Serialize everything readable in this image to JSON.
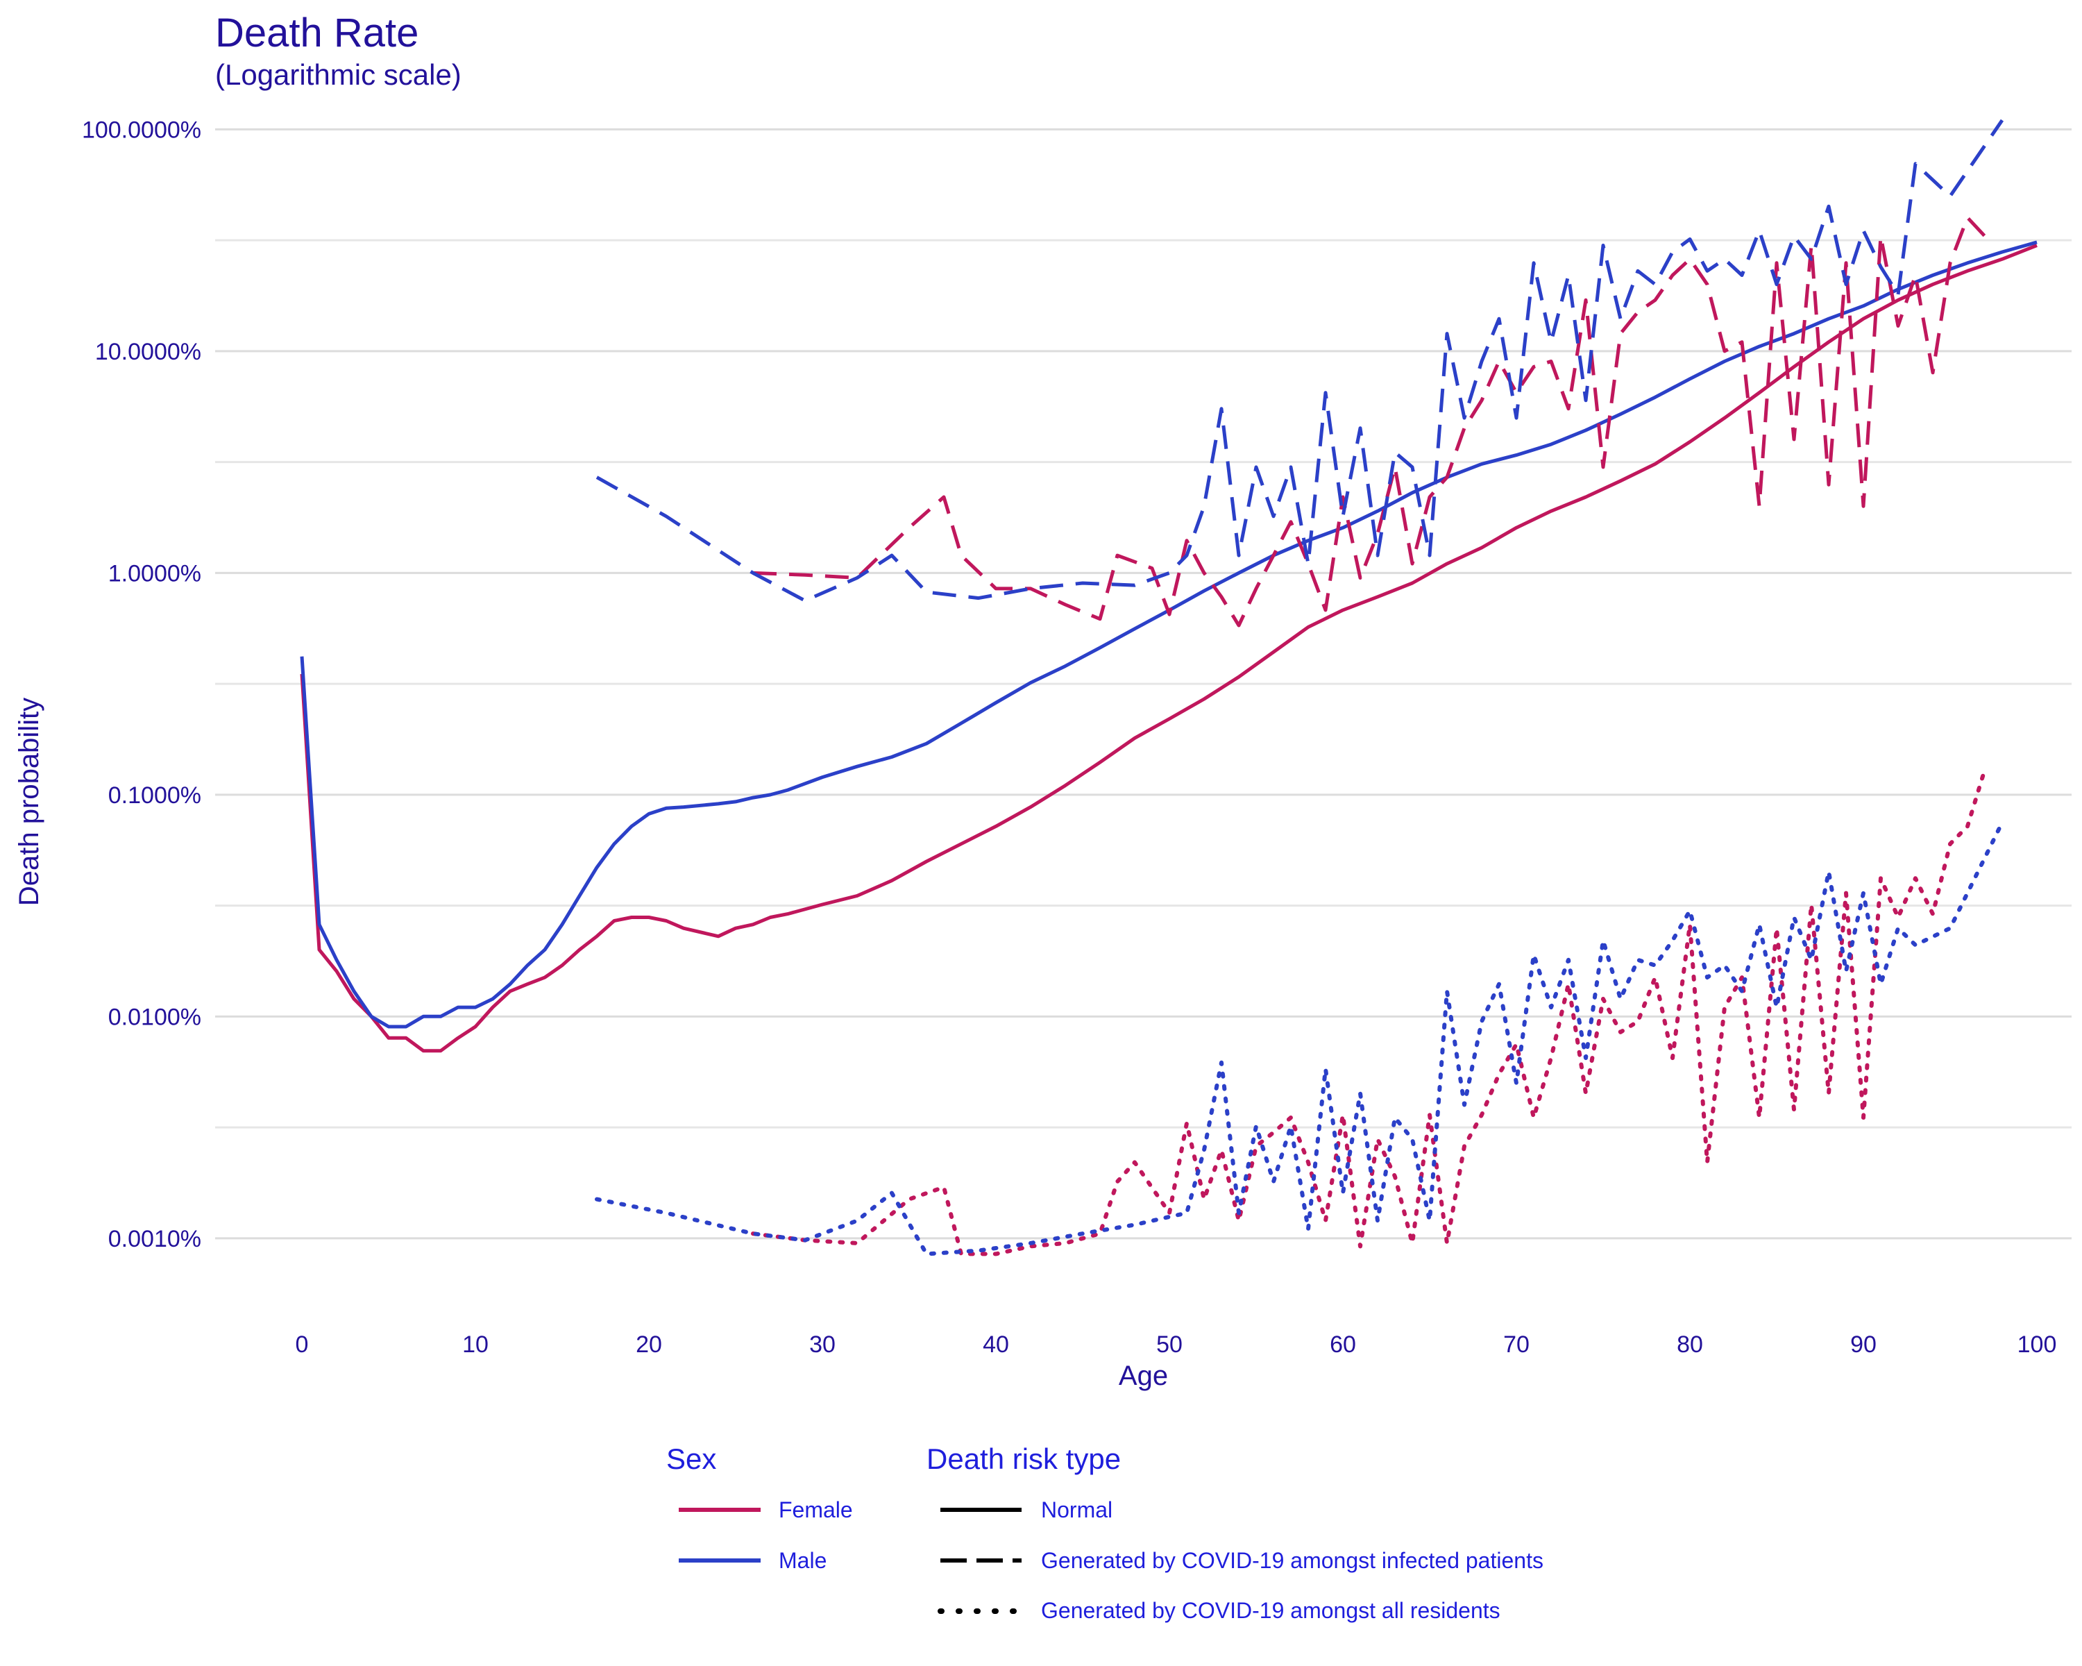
{
  "chart_data": {
    "type": "line",
    "title": "Death Rate",
    "subtitle": "(Logarithmic scale)",
    "xlabel": "Age",
    "ylabel": "Death probability",
    "y_scale": "log",
    "xlim": [
      -5,
      102
    ],
    "ylim": [
      5e-06,
      1.3
    ],
    "x_ticks": [
      0,
      10,
      20,
      30,
      40,
      50,
      60,
      70,
      80,
      90,
      100
    ],
    "y_ticks": [
      1e-05,
      0.0001,
      0.001,
      0.01,
      0.1,
      1
    ],
    "y_tick_labels": [
      "0.0010%",
      "0.0100%",
      "0.1000%",
      "1.0000%",
      "10.0000%",
      "100.0000%"
    ],
    "grid": true,
    "legend_position": "bottom",
    "legend": {
      "sex_title": "Sex",
      "sex_items": [
        {
          "label": "Female",
          "color": "#c0175c"
        },
        {
          "label": "Male",
          "color": "#2b40c8"
        }
      ],
      "type_title": "Death risk type",
      "type_items": [
        {
          "label": "Normal",
          "dash": "solid"
        },
        {
          "label": "Generated by COVID-19 amongst infected patients",
          "dash": "dashed"
        },
        {
          "label": "Generated by COVID-19 amongst all residents",
          "dash": "dotted"
        }
      ]
    },
    "series": [
      {
        "sex": "Female",
        "type": "Normal",
        "color": "#c0175c",
        "dash": "solid",
        "x": [
          0,
          1,
          2,
          3,
          4,
          5,
          6,
          7,
          8,
          9,
          10,
          11,
          12,
          13,
          14,
          15,
          16,
          17,
          18,
          19,
          20,
          21,
          22,
          24,
          25,
          26,
          27,
          28,
          30,
          32,
          34,
          36,
          38,
          40,
          42,
          44,
          46,
          48,
          50,
          52,
          54,
          56,
          58,
          60,
          62,
          64,
          66,
          68,
          70,
          72,
          74,
          76,
          78,
          80,
          82,
          84,
          86,
          88,
          90,
          92,
          94,
          96,
          98,
          100
        ],
        "y": [
          0.0035,
          0.0002,
          0.00016,
          0.00012,
          0.0001,
          8e-05,
          8e-05,
          7e-05,
          7e-05,
          8e-05,
          9e-05,
          0.00011,
          0.00013,
          0.00014,
          0.00015,
          0.00017,
          0.0002,
          0.00023,
          0.00027,
          0.00028,
          0.00028,
          0.00027,
          0.00025,
          0.00023,
          0.00025,
          0.00026,
          0.00028,
          0.00029,
          0.00032,
          0.00035,
          0.00041,
          0.0005,
          0.0006,
          0.00072,
          0.00088,
          0.0011,
          0.0014,
          0.0018,
          0.0022,
          0.0027,
          0.0034,
          0.0044,
          0.0057,
          0.0068,
          0.0078,
          0.009,
          0.011,
          0.013,
          0.016,
          0.019,
          0.022,
          0.026,
          0.031,
          0.039,
          0.05,
          0.065,
          0.085,
          0.11,
          0.14,
          0.17,
          0.2,
          0.23,
          0.26,
          0.3
        ]
      },
      {
        "sex": "Male",
        "type": "Normal",
        "color": "#2b40c8",
        "dash": "solid",
        "x": [
          0,
          1,
          2,
          3,
          4,
          5,
          6,
          7,
          8,
          9,
          10,
          11,
          12,
          13,
          14,
          15,
          16,
          17,
          18,
          19,
          20,
          21,
          22,
          24,
          25,
          26,
          27,
          28,
          30,
          32,
          34,
          36,
          38,
          40,
          42,
          44,
          46,
          48,
          50,
          52,
          54,
          56,
          58,
          60,
          62,
          64,
          66,
          68,
          70,
          72,
          74,
          76,
          78,
          80,
          82,
          84,
          86,
          88,
          90,
          92,
          94,
          96,
          98,
          100
        ],
        "y": [
          0.0042,
          0.00026,
          0.00018,
          0.00013,
          0.0001,
          9e-05,
          9e-05,
          0.0001,
          0.0001,
          0.00011,
          0.00011,
          0.00012,
          0.00014,
          0.00017,
          0.0002,
          0.00026,
          0.00035,
          0.00047,
          0.0006,
          0.00072,
          0.00082,
          0.00087,
          0.00088,
          0.00091,
          0.00093,
          0.00097,
          0.001,
          0.00105,
          0.0012,
          0.00134,
          0.00148,
          0.0017,
          0.0021,
          0.0026,
          0.0032,
          0.0038,
          0.0046,
          0.0056,
          0.0068,
          0.0083,
          0.01,
          0.012,
          0.014,
          0.016,
          0.019,
          0.023,
          0.027,
          0.031,
          0.034,
          0.038,
          0.044,
          0.052,
          0.062,
          0.075,
          0.09,
          0.105,
          0.12,
          0.14,
          0.16,
          0.19,
          0.22,
          0.25,
          0.28,
          0.31
        ]
      },
      {
        "sex": "Female",
        "type": "Generated by COVID-19 amongst infected patients",
        "color": "#c0175c",
        "dash": "dashed",
        "x": [
          26,
          29,
          32,
          35,
          37,
          38,
          40,
          42,
          44,
          46,
          47,
          49,
          50,
          51,
          52,
          53,
          54,
          55,
          56,
          57,
          58,
          59,
          60,
          61,
          62,
          63,
          64,
          65,
          66,
          67,
          68,
          69,
          70,
          71,
          72,
          73,
          74,
          75,
          76,
          77,
          78,
          79,
          80,
          81,
          82,
          83,
          84,
          85,
          86,
          87,
          88,
          89,
          90,
          91,
          92,
          93,
          94,
          95,
          96,
          97
        ],
        "y": [
          0.01,
          0.0098,
          0.0095,
          0.016,
          0.022,
          0.012,
          0.0085,
          0.0085,
          0.0072,
          0.0062,
          0.012,
          0.0105,
          0.0065,
          0.014,
          0.01,
          0.0078,
          0.0058,
          0.0085,
          0.012,
          0.017,
          0.011,
          0.0068,
          0.022,
          0.0095,
          0.015,
          0.03,
          0.011,
          0.022,
          0.027,
          0.045,
          0.06,
          0.09,
          0.065,
          0.085,
          0.09,
          0.055,
          0.17,
          0.03,
          0.12,
          0.15,
          0.17,
          0.22,
          0.26,
          0.2,
          0.1,
          0.11,
          0.02,
          0.25,
          0.04,
          0.3,
          0.025,
          0.25,
          0.02,
          0.33,
          0.13,
          0.22,
          0.08,
          0.25,
          0.4,
          0.33
        ]
      },
      {
        "sex": "Male",
        "type": "Generated by COVID-19 amongst infected patients",
        "color": "#2b40c8",
        "dash": "dashed",
        "x": [
          17,
          21,
          26,
          29,
          32,
          34,
          36,
          39,
          42,
          45,
          48,
          50,
          51,
          52,
          53,
          54,
          55,
          56,
          57,
          58,
          59,
          60,
          61,
          62,
          63,
          64,
          65,
          66,
          67,
          68,
          69,
          70,
          71,
          72,
          73,
          74,
          75,
          76,
          77,
          78,
          79,
          80,
          81,
          82,
          83,
          84,
          85,
          86,
          87,
          88,
          89,
          90,
          91,
          92,
          93,
          95,
          98
        ],
        "y": [
          0.027,
          0.018,
          0.01,
          0.0075,
          0.0095,
          0.012,
          0.0082,
          0.0077,
          0.0085,
          0.009,
          0.0088,
          0.01,
          0.012,
          0.02,
          0.055,
          0.012,
          0.03,
          0.018,
          0.03,
          0.011,
          0.065,
          0.018,
          0.045,
          0.012,
          0.035,
          0.03,
          0.012,
          0.12,
          0.05,
          0.09,
          0.14,
          0.05,
          0.25,
          0.11,
          0.22,
          0.06,
          0.3,
          0.14,
          0.23,
          0.2,
          0.28,
          0.32,
          0.23,
          0.26,
          0.22,
          0.35,
          0.2,
          0.33,
          0.26,
          0.45,
          0.2,
          0.35,
          0.24,
          0.18,
          0.7,
          0.5,
          1.1
        ]
      },
      {
        "sex": "Female",
        "type": "Generated by COVID-19 amongst all residents",
        "color": "#c0175c",
        "dash": "dotted",
        "x": [
          26,
          29,
          32,
          35,
          37,
          38,
          40,
          42,
          44,
          46,
          47,
          48,
          50,
          51,
          52,
          53,
          54,
          55,
          56,
          57,
          58,
          59,
          60,
          61,
          62,
          63,
          64,
          65,
          66,
          67,
          68,
          69,
          70,
          71,
          72,
          73,
          74,
          75,
          76,
          77,
          78,
          79,
          80,
          81,
          82,
          83,
          84,
          85,
          86,
          87,
          88,
          89,
          90,
          91,
          92,
          93,
          94,
          95,
          96,
          97
        ],
        "y": [
          1.05e-05,
          9.8e-06,
          9.5e-06,
          1.5e-05,
          1.7e-05,
          8.5e-06,
          8.5e-06,
          9.2e-06,
          9.5e-06,
          1.05e-05,
          1.8e-05,
          2.2e-05,
          1.3e-05,
          3.3e-05,
          1.5e-05,
          2.5e-05,
          1.2e-05,
          2.6e-05,
          3e-05,
          3.5e-05,
          2.2e-05,
          1.2e-05,
          3.6e-05,
          9.2e-06,
          2.8e-05,
          1.9e-05,
          9.5e-06,
          3.6e-05,
          9.5e-06,
          2.6e-05,
          3.6e-05,
          5.5e-05,
          7.5e-05,
          3.5e-05,
          6.5e-05,
          0.00014,
          4.5e-05,
          0.00012,
          8.5e-05,
          9.5e-05,
          0.00015,
          6.5e-05,
          0.00026,
          2.2e-05,
          0.00011,
          0.00015,
          3.5e-05,
          0.00025,
          3.8e-05,
          0.00032,
          4.5e-05,
          0.00036,
          3.5e-05,
          0.00042,
          0.00028,
          0.00042,
          0.00029,
          0.0006,
          0.00072,
          0.0013
        ]
      },
      {
        "sex": "Male",
        "type": "Generated by COVID-19 amongst all residents",
        "color": "#2b40c8",
        "dash": "dotted",
        "x": [
          17,
          21,
          26,
          29,
          32,
          34,
          36,
          39,
          42,
          45,
          48,
          50,
          51,
          52,
          53,
          54,
          55,
          56,
          57,
          58,
          59,
          60,
          61,
          62,
          63,
          64,
          65,
          66,
          67,
          68,
          69,
          70,
          71,
          72,
          73,
          74,
          75,
          76,
          77,
          78,
          79,
          80,
          81,
          82,
          83,
          84,
          85,
          86,
          87,
          88,
          89,
          90,
          91,
          92,
          93,
          95,
          98
        ],
        "y": [
          1.5e-05,
          1.3e-05,
          1.05e-05,
          9.8e-06,
          1.2e-05,
          1.6e-05,
          8.5e-06,
          8.8e-06,
          9.5e-06,
          1.05e-05,
          1.15e-05,
          1.25e-05,
          1.3e-05,
          2.5e-05,
          6.2e-05,
          1.3e-05,
          3.2e-05,
          1.8e-05,
          3.2e-05,
          1.1e-05,
          5.8e-05,
          1.6e-05,
          4.5e-05,
          1.2e-05,
          3.5e-05,
          2.8e-05,
          1.2e-05,
          0.00013,
          4e-05,
          9.5e-05,
          0.00014,
          5e-05,
          0.00019,
          0.00011,
          0.00018,
          6.5e-05,
          0.00022,
          0.00012,
          0.00018,
          0.00017,
          0.00022,
          0.0003,
          0.00015,
          0.00017,
          0.00013,
          0.00026,
          0.00011,
          0.00028,
          0.00018,
          0.00045,
          0.00016,
          0.00036,
          0.00014,
          0.00025,
          0.00021,
          0.00025,
          0.00075
        ]
      }
    ]
  }
}
